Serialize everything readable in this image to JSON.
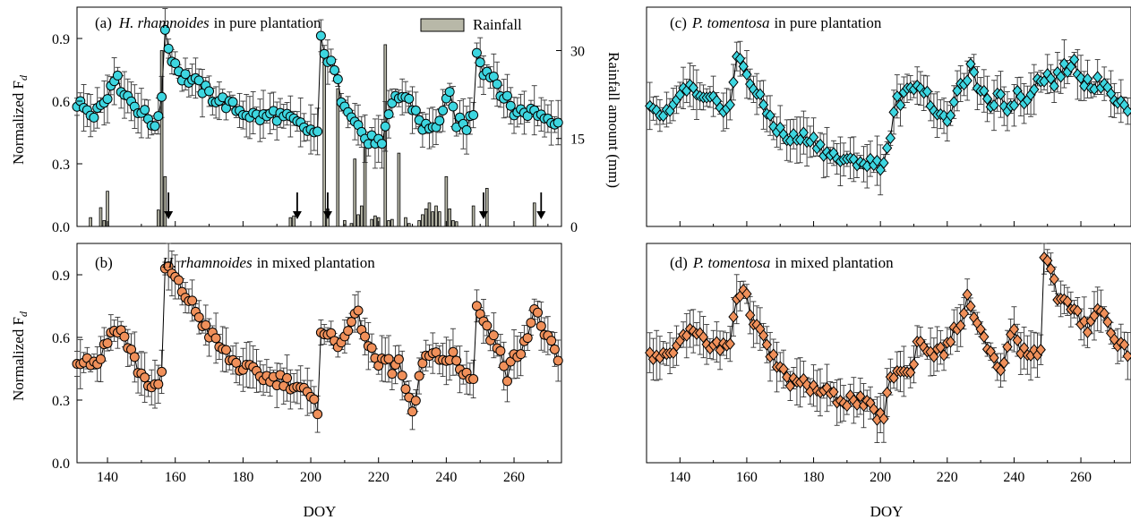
{
  "figure": {
    "x_axis_label": "DOY",
    "y_axis_label_main": "Normalized F",
    "y_axis_label_sub": "d",
    "rain_axis_label": "Rainfall amount (mm)",
    "colors": {
      "cyan": "#3dd6e0",
      "orange": "#f0905a",
      "rain": "#b8b8a8",
      "line": "#000000"
    }
  },
  "chart_data": [
    {
      "type": "line",
      "panel_id": "a",
      "tag": "(a)",
      "species": "H. rhamnoides",
      "title_rest": "in pure plantation",
      "marker": "circle",
      "color": "#3dd6e0",
      "xlim": [
        131,
        274
      ],
      "ylim": [
        0,
        1.05
      ],
      "xticks": [
        140,
        160,
        180,
        200,
        220,
        240,
        260
      ],
      "xtick_labels": [],
      "yticks": [
        0.0,
        0.3,
        0.6,
        0.9
      ],
      "ytick_labels": [
        "0.0",
        "0.3",
        "0.6",
        "0.9"
      ],
      "anchors": [
        [
          131,
          0.58
        ],
        [
          134,
          0.57
        ],
        [
          136,
          0.55
        ],
        [
          138,
          0.58
        ],
        [
          140,
          0.62
        ],
        [
          141,
          0.7
        ],
        [
          142,
          0.72
        ],
        [
          144,
          0.67
        ],
        [
          147,
          0.6
        ],
        [
          150,
          0.55
        ],
        [
          153,
          0.5
        ],
        [
          155,
          0.5
        ],
        [
          156,
          0.63
        ],
        [
          157,
          0.96
        ],
        [
          158,
          0.85
        ],
        [
          160,
          0.78
        ],
        [
          162,
          0.72
        ],
        [
          165,
          0.7
        ],
        [
          168,
          0.66
        ],
        [
          171,
          0.62
        ],
        [
          174,
          0.6
        ],
        [
          177,
          0.57
        ],
        [
          180,
          0.55
        ],
        [
          183,
          0.53
        ],
        [
          186,
          0.52
        ],
        [
          189,
          0.54
        ],
        [
          192,
          0.52
        ],
        [
          195,
          0.5
        ],
        [
          198,
          0.47
        ],
        [
          201,
          0.45
        ],
        [
          202,
          0.43
        ],
        [
          203,
          0.9
        ],
        [
          205,
          0.8
        ],
        [
          207,
          0.74
        ],
        [
          209,
          0.62
        ],
        [
          212,
          0.55
        ],
        [
          215,
          0.45
        ],
        [
          217,
          0.4
        ],
        [
          219,
          0.42
        ],
        [
          221,
          0.38
        ],
        [
          223,
          0.52
        ],
        [
          225,
          0.62
        ],
        [
          228,
          0.62
        ],
        [
          231,
          0.55
        ],
        [
          233,
          0.48
        ],
        [
          236,
          0.46
        ],
        [
          239,
          0.55
        ],
        [
          241,
          0.62
        ],
        [
          243,
          0.5
        ],
        [
          246,
          0.48
        ],
        [
          248,
          0.55
        ],
        [
          249,
          0.85
        ],
        [
          251,
          0.75
        ],
        [
          254,
          0.72
        ],
        [
          257,
          0.62
        ],
        [
          260,
          0.55
        ],
        [
          263,
          0.55
        ],
        [
          266,
          0.55
        ],
        [
          270,
          0.52
        ],
        [
          273,
          0.51
        ]
      ],
      "rain": {
        "label": "Rainfall",
        "ylim": [
          0,
          37.4
        ],
        "yticks": [
          0,
          15,
          30
        ],
        "ytick_labels": [
          "0",
          "15",
          "30"
        ],
        "bars": [
          [
            135,
            1.5
          ],
          [
            138,
            3.2
          ],
          [
            139,
            1.0
          ],
          [
            140,
            6.0
          ],
          [
            155,
            2.8
          ],
          [
            156,
            30.0
          ],
          [
            157,
            8.5
          ],
          [
            194,
            1.5
          ],
          [
            195,
            1.8
          ],
          [
            204,
            29.0
          ],
          [
            205,
            3.0
          ],
          [
            208,
            23.5
          ],
          [
            210,
            1.0
          ],
          [
            212,
            0.5
          ],
          [
            213,
            11.5
          ],
          [
            214,
            2.0
          ],
          [
            215,
            3.5
          ],
          [
            216,
            13.5
          ],
          [
            218,
            1.2
          ],
          [
            219,
            1.8
          ],
          [
            220,
            1.5
          ],
          [
            222,
            31.0
          ],
          [
            223,
            1.0
          ],
          [
            224,
            1.2
          ],
          [
            226,
            12.5
          ],
          [
            228,
            1.5
          ],
          [
            229,
            0.5
          ],
          [
            232,
            1.0
          ],
          [
            233,
            2.0
          ],
          [
            234,
            3.0
          ],
          [
            235,
            4.0
          ],
          [
            236,
            2.5
          ],
          [
            237,
            3.5
          ],
          [
            238,
            2.5
          ],
          [
            240,
            8.5
          ],
          [
            241,
            3.0
          ],
          [
            242,
            1.0
          ],
          [
            243,
            0.8
          ],
          [
            248,
            3.5
          ],
          [
            252,
            6.5
          ],
          [
            266,
            4.0
          ]
        ]
      },
      "arrows_doy": [
        158,
        196,
        205,
        251,
        268
      ]
    },
    {
      "type": "line",
      "panel_id": "b",
      "tag": "(b)",
      "species": "H. rhamnoides",
      "title_rest": "in mixed plantation",
      "marker": "circle",
      "color": "#f0905a",
      "xlim": [
        131,
        274
      ],
      "ylim": [
        0,
        1.05
      ],
      "xticks": [
        140,
        160,
        180,
        200,
        220,
        240,
        260
      ],
      "xtick_labels": [
        "140",
        "160",
        "180",
        "200",
        "220",
        "240",
        "260"
      ],
      "yticks": [
        0.0,
        0.3,
        0.6,
        0.9
      ],
      "ytick_labels": [
        "0.0",
        "0.3",
        "0.6",
        "0.9"
      ],
      "anchors": [
        [
          131,
          0.5
        ],
        [
          134,
          0.49
        ],
        [
          137,
          0.48
        ],
        [
          139,
          0.55
        ],
        [
          141,
          0.62
        ],
        [
          143,
          0.65
        ],
        [
          145,
          0.6
        ],
        [
          147,
          0.53
        ],
        [
          149,
          0.45
        ],
        [
          151,
          0.4
        ],
        [
          153,
          0.37
        ],
        [
          155,
          0.35
        ],
        [
          156,
          0.44
        ],
        [
          157,
          0.92
        ],
        [
          158,
          0.93
        ],
        [
          161,
          0.85
        ],
        [
          164,
          0.78
        ],
        [
          167,
          0.7
        ],
        [
          170,
          0.62
        ],
        [
          173,
          0.56
        ],
        [
          176,
          0.5
        ],
        [
          179,
          0.46
        ],
        [
          182,
          0.44
        ],
        [
          185,
          0.42
        ],
        [
          188,
          0.4
        ],
        [
          191,
          0.4
        ],
        [
          194,
          0.38
        ],
        [
          197,
          0.36
        ],
        [
          200,
          0.3
        ],
        [
          202,
          0.25
        ],
        [
          203,
          0.65
        ],
        [
          206,
          0.6
        ],
        [
          208,
          0.55
        ],
        [
          210,
          0.63
        ],
        [
          212,
          0.67
        ],
        [
          214,
          0.7
        ],
        [
          216,
          0.62
        ],
        [
          218,
          0.52
        ],
        [
          220,
          0.47
        ],
        [
          222,
          0.5
        ],
        [
          224,
          0.45
        ],
        [
          226,
          0.48
        ],
        [
          228,
          0.35
        ],
        [
          230,
          0.22
        ],
        [
          232,
          0.4
        ],
        [
          234,
          0.5
        ],
        [
          236,
          0.55
        ],
        [
          238,
          0.5
        ],
        [
          240,
          0.47
        ],
        [
          242,
          0.52
        ],
        [
          244,
          0.45
        ],
        [
          246,
          0.42
        ],
        [
          248,
          0.42
        ],
        [
          249,
          0.75
        ],
        [
          251,
          0.68
        ],
        [
          253,
          0.6
        ],
        [
          256,
          0.55
        ],
        [
          258,
          0.42
        ],
        [
          260,
          0.5
        ],
        [
          262,
          0.55
        ],
        [
          264,
          0.62
        ],
        [
          266,
          0.73
        ],
        [
          268,
          0.66
        ],
        [
          270,
          0.6
        ],
        [
          273,
          0.47
        ]
      ]
    },
    {
      "type": "line",
      "panel_id": "c",
      "tag": "(c)",
      "species": "P. tomentosa",
      "title_rest": "in pure plantation",
      "marker": "diamond",
      "color": "#3dd6e0",
      "xlim": [
        130,
        275
      ],
      "ylim": [
        0,
        1.05
      ],
      "xticks": [
        140,
        160,
        180,
        200,
        220,
        240,
        260
      ],
      "xtick_labels": [],
      "yticks": [],
      "ytick_labels": [],
      "anchors": [
        [
          131,
          0.55
        ],
        [
          134,
          0.53
        ],
        [
          137,
          0.55
        ],
        [
          139,
          0.58
        ],
        [
          141,
          0.65
        ],
        [
          143,
          0.67
        ],
        [
          146,
          0.6
        ],
        [
          149,
          0.6
        ],
        [
          152,
          0.58
        ],
        [
          155,
          0.57
        ],
        [
          156,
          0.7
        ],
        [
          157,
          0.8
        ],
        [
          159,
          0.77
        ],
        [
          161,
          0.7
        ],
        [
          163,
          0.63
        ],
        [
          166,
          0.55
        ],
        [
          169,
          0.47
        ],
        [
          172,
          0.42
        ],
        [
          175,
          0.42
        ],
        [
          178,
          0.43
        ],
        [
          181,
          0.4
        ],
        [
          184,
          0.35
        ],
        [
          187,
          0.33
        ],
        [
          190,
          0.3
        ],
        [
          193,
          0.32
        ],
        [
          196,
          0.3
        ],
        [
          199,
          0.3
        ],
        [
          201,
          0.3
        ],
        [
          203,
          0.45
        ],
        [
          205,
          0.6
        ],
        [
          207,
          0.62
        ],
        [
          209,
          0.65
        ],
        [
          211,
          0.7
        ],
        [
          213,
          0.65
        ],
        [
          215,
          0.6
        ],
        [
          217,
          0.55
        ],
        [
          219,
          0.5
        ],
        [
          221,
          0.55
        ],
        [
          223,
          0.62
        ],
        [
          225,
          0.7
        ],
        [
          227,
          0.75
        ],
        [
          229,
          0.68
        ],
        [
          231,
          0.62
        ],
        [
          233,
          0.55
        ],
        [
          235,
          0.65
        ],
        [
          237,
          0.6
        ],
        [
          239,
          0.55
        ],
        [
          241,
          0.65
        ],
        [
          243,
          0.6
        ],
        [
          246,
          0.68
        ],
        [
          249,
          0.72
        ],
        [
          252,
          0.7
        ],
        [
          255,
          0.75
        ],
        [
          258,
          0.78
        ],
        [
          261,
          0.7
        ],
        [
          264,
          0.68
        ],
        [
          267,
          0.7
        ],
        [
          270,
          0.62
        ],
        [
          274,
          0.55
        ]
      ]
    },
    {
      "type": "line",
      "panel_id": "d",
      "tag": "(d)",
      "species": "P. tomentosa",
      "title_rest": "in mixed plantation",
      "marker": "diamond",
      "color": "#f0905a",
      "xlim": [
        130,
        275
      ],
      "ylim": [
        0,
        1.05
      ],
      "xticks": [
        140,
        160,
        180,
        200,
        220,
        240,
        260
      ],
      "xtick_labels": [
        "140",
        "160",
        "180",
        "200",
        "220",
        "240",
        "260"
      ],
      "yticks": [],
      "ytick_labels": [],
      "anchors": [
        [
          131,
          0.52
        ],
        [
          134,
          0.5
        ],
        [
          137,
          0.51
        ],
        [
          139,
          0.55
        ],
        [
          141,
          0.62
        ],
        [
          143,
          0.65
        ],
        [
          146,
          0.6
        ],
        [
          149,
          0.56
        ],
        [
          152,
          0.55
        ],
        [
          155,
          0.57
        ],
        [
          156,
          0.7
        ],
        [
          157,
          0.8
        ],
        [
          159,
          0.83
        ],
        [
          161,
          0.73
        ],
        [
          163,
          0.65
        ],
        [
          166,
          0.55
        ],
        [
          169,
          0.47
        ],
        [
          172,
          0.4
        ],
        [
          175,
          0.38
        ],
        [
          178,
          0.37
        ],
        [
          181,
          0.35
        ],
        [
          184,
          0.33
        ],
        [
          187,
          0.31
        ],
        [
          190,
          0.3
        ],
        [
          193,
          0.3
        ],
        [
          196,
          0.27
        ],
        [
          199,
          0.23
        ],
        [
          201,
          0.22
        ],
        [
          203,
          0.4
        ],
        [
          205,
          0.45
        ],
        [
          207,
          0.43
        ],
        [
          209,
          0.42
        ],
        [
          211,
          0.58
        ],
        [
          214,
          0.55
        ],
        [
          217,
          0.52
        ],
        [
          220,
          0.55
        ],
        [
          222,
          0.65
        ],
        [
          224,
          0.63
        ],
        [
          226,
          0.82
        ],
        [
          228,
          0.68
        ],
        [
          230,
          0.62
        ],
        [
          232,
          0.55
        ],
        [
          234,
          0.48
        ],
        [
          236,
          0.42
        ],
        [
          238,
          0.58
        ],
        [
          240,
          0.62
        ],
        [
          242,
          0.55
        ],
        [
          245,
          0.52
        ],
        [
          248,
          0.55
        ],
        [
          249,
          1.0
        ],
        [
          251,
          0.92
        ],
        [
          253,
          0.8
        ],
        [
          256,
          0.75
        ],
        [
          259,
          0.7
        ],
        [
          262,
          0.65
        ],
        [
          265,
          0.75
        ],
        [
          267,
          0.7
        ],
        [
          270,
          0.6
        ],
        [
          274,
          0.53
        ]
      ]
    }
  ]
}
